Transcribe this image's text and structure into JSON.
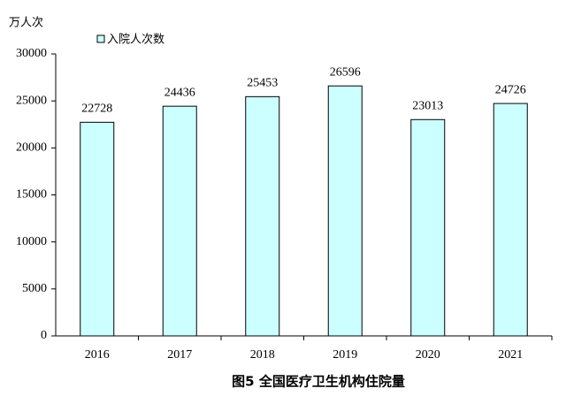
{
  "chart_data": {
    "type": "bar",
    "title": "图5 全国医疗卫生机构住院量",
    "y_label": "万人次",
    "categories": [
      "2016",
      "2017",
      "2018",
      "2019",
      "2020",
      "2021"
    ],
    "series": [
      {
        "name": "入院人次数",
        "color": "#ccffff",
        "values": [
          22728,
          24436,
          25453,
          26596,
          23013,
          24726
        ]
      }
    ],
    "ylim": [
      0,
      30000
    ],
    "yticks": [
      0,
      5000,
      10000,
      15000,
      20000,
      25000,
      30000
    ],
    "grid": false
  }
}
